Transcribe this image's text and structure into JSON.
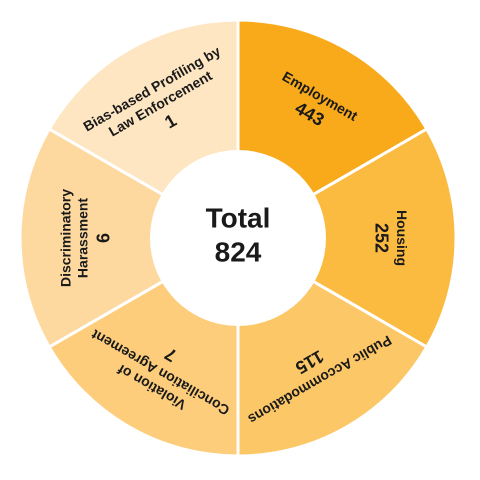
{
  "chart_data": {
    "type": "donut",
    "categories": [
      "Employment",
      "Housing",
      "Public Accommodations",
      "Violation of Conciliation Agreement",
      "Discriminatory Harassment",
      "Bias-based Profiling by Law Enforcement"
    ],
    "values": [
      443,
      252,
      115,
      7,
      6,
      1
    ],
    "colors": [
      "#f8aa1b",
      "#fbbb40",
      "#fcc767",
      "#fdcd7c",
      "#fdd9a0",
      "#fee6c2"
    ],
    "center_label": "Total",
    "total": 824
  }
}
